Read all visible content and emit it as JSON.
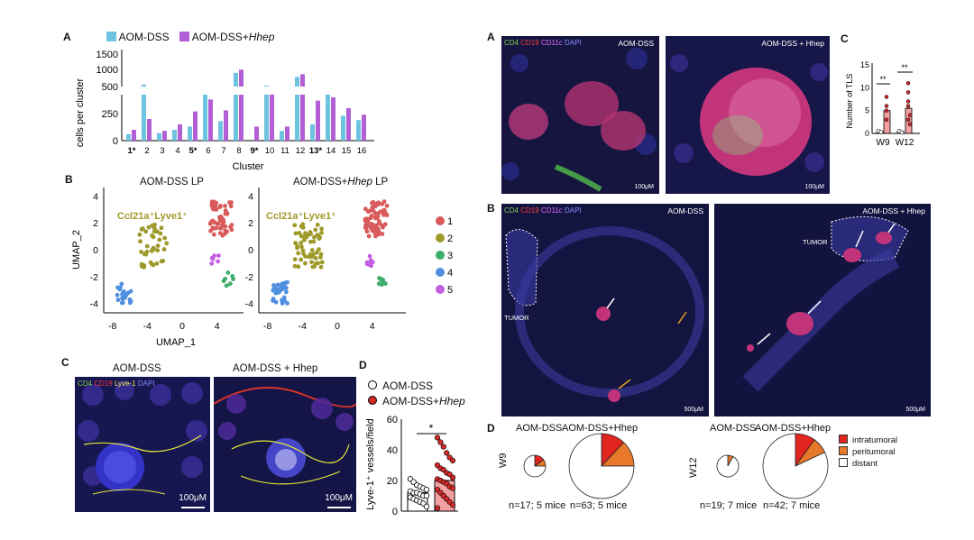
{
  "left": {
    "A": {
      "letter": "A",
      "legend": [
        "AOM-DSS",
        "AOM-DSS+",
        "Hhep"
      ],
      "colors": {
        "aom": "#6ec3e0",
        "hhep": "#b25fd6"
      },
      "ylabel": "cells per cluster",
      "xlabel": "Cluster",
      "yticks_top": [
        "1500",
        "1000",
        "500"
      ],
      "yticks_bottom": [
        "250",
        "0"
      ],
      "clusters": [
        "1*",
        "2",
        "3",
        "4",
        "5*",
        "6",
        "7",
        "8",
        "9*",
        "10",
        "11",
        "12",
        "13*",
        "14",
        "15",
        "16"
      ]
    },
    "B": {
      "letter": "B",
      "title_left": "AOM-DSS LP",
      "title_right_pre": "AOM-DSS+",
      "title_right_it": "Hhep",
      "title_right_post": " LP",
      "gene_label": "Ccl21a⁺Lyve1⁺",
      "ylabel": "UMAP_2",
      "xlabel": "UMAP_1",
      "yticks": [
        "4",
        "2",
        "0",
        "-2",
        "-4"
      ],
      "xticks_left": [
        "-8",
        "-4",
        "0",
        "4"
      ],
      "xticks_right": [
        "-8",
        "-4",
        "0",
        "4"
      ],
      "legend": [
        "1",
        "2",
        "3",
        "4",
        "5"
      ],
      "cluster_colors": [
        "#d95a5a",
        "#9e9a2a",
        "#3fae6a",
        "#4f8fe0",
        "#c25fe0"
      ]
    },
    "C": {
      "letter": "C",
      "title_left": "AOM-DSS",
      "title_right": "AOM-DSS + Hhep",
      "channels": [
        "CD4",
        "CD19",
        "Lyve-1",
        "DAPI"
      ],
      "scale_left": "100μM",
      "scale_right": "100μM"
    },
    "D": {
      "letter": "D",
      "legend": [
        "AOM-DSS",
        "AOM-DSS+",
        "Hhep"
      ],
      "ylabel": "Lyve-1⁺ vessels/field",
      "yticks": [
        "60",
        "40",
        "20",
        "0"
      ],
      "significance": "*",
      "chart_data": {
        "type": "bar",
        "categories": [
          "AOM-DSS",
          "AOM-DSS+Hhep"
        ],
        "values": [
          12,
          20
        ],
        "ylim": [
          0,
          60
        ],
        "ylabel": "Lyve-1+ vessels/field",
        "points_aom": [
          21,
          19,
          17,
          16,
          15,
          14,
          13,
          12,
          12,
          11,
          10,
          10,
          9,
          8,
          7,
          6,
          5,
          3
        ],
        "points_hhep": [
          48,
          45,
          42,
          38,
          35,
          33,
          30,
          28,
          27,
          25,
          24,
          22,
          21,
          20,
          19,
          18,
          16,
          15,
          14,
          12,
          10,
          8,
          6,
          4,
          2
        ]
      }
    }
  },
  "right": {
    "A": {
      "letter": "A",
      "channels": [
        "CD4",
        "CD19",
        "CD11c",
        "DAPI"
      ],
      "title_left": "AOM-DSS",
      "title_right": "AOM-DSS + Hhep",
      "scale_left": "100μM",
      "scale_right": "100μM"
    },
    "C": {
      "letter": "C",
      "ylabel": "Number of TLS",
      "yticks": [
        "15",
        "10",
        "5",
        "0"
      ],
      "xticks": [
        "W9",
        "W12"
      ],
      "significance": [
        "**",
        "**"
      ],
      "chart_data": {
        "type": "bar",
        "categories": [
          "W9 AOM-DSS",
          "W9 AOM-DSS+Hhep",
          "W12 AOM-DSS",
          "W12 AOM-DSS+Hhep"
        ],
        "values": [
          0.3,
          5,
          0.5,
          5.5
        ],
        "ylim": [
          0,
          15
        ],
        "ylabel": "Number of TLS"
      }
    },
    "B": {
      "letter": "B",
      "channels": [
        "CD4",
        "CD19",
        "CD11c",
        "DAPI"
      ],
      "title_left": "AOM-DSS",
      "title_right": "AOM-DSS + Hhep",
      "tumor": "TUMOR",
      "scale_left": "500μM",
      "scale_right": "500μM"
    },
    "D": {
      "letter": "D",
      "w9": {
        "row": "W9",
        "left_title": "AOM-DSS",
        "right_title": "AOM-DSS+Hhep",
        "left_n": "n=17; 5 mice",
        "right_n": "n=63; 5 mice"
      },
      "w12": {
        "row": "W12",
        "left_title": "AOM-DSS",
        "right_title": "AOM-DSS+Hhep",
        "left_n": "n=19; 7 mice",
        "right_n": "n=42; 7 mice"
      },
      "legend": [
        "intratumoral",
        "peritumoral",
        "distant"
      ],
      "legend_colors": [
        "#e0261f",
        "#e8782a",
        "#ffffff"
      ],
      "chart_data": {
        "type": "pie",
        "categories": [
          "intratumoral",
          "peritumoral",
          "distant"
        ],
        "series": [
          {
            "name": "W9 AOM-DSS",
            "values": [
              15,
              10,
              75
            ]
          },
          {
            "name": "W9 AOM-DSS+Hhep",
            "values": [
              12,
              13,
              75
            ]
          },
          {
            "name": "W12 AOM-DSS",
            "values": [
              0,
              8,
              92
            ]
          },
          {
            "name": "W12 AOM-DSS+Hhep",
            "values": [
              10,
              8,
              82
            ]
          }
        ]
      }
    }
  }
}
